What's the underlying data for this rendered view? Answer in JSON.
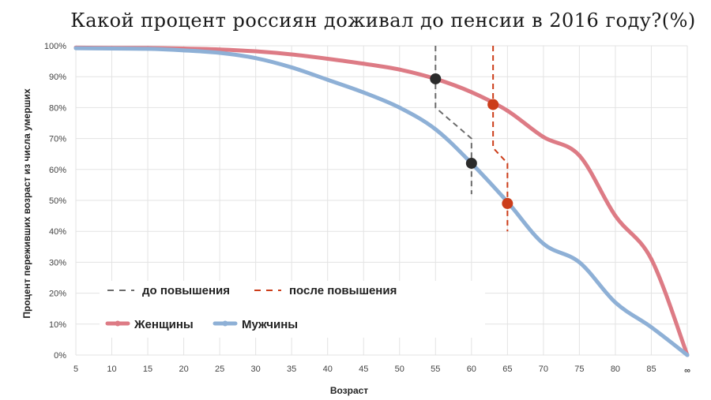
{
  "chart_data": {
    "type": "line",
    "title": "Какой процент россиян доживал до пенсии в 2016 году?(%)",
    "xlabel": "Возраст",
    "ylabel": "Процент переживших возраст из числа умерших",
    "x_ticks": [
      "5",
      "10",
      "15",
      "20",
      "25",
      "30",
      "35",
      "40",
      "45",
      "50",
      "55",
      "60",
      "65",
      "70",
      "75",
      "80",
      "85",
      "∞"
    ],
    "y_ticks": [
      "0%",
      "10%",
      "20%",
      "30%",
      "40%",
      "50%",
      "60%",
      "70%",
      "80%",
      "90%",
      "100%"
    ],
    "ylim": [
      0,
      100
    ],
    "grid": true,
    "series": [
      {
        "name": "Женщины",
        "color": "#dd7b85",
        "x": [
          5,
          10,
          15,
          20,
          25,
          30,
          35,
          40,
          45,
          50,
          55,
          60,
          65,
          70,
          75,
          80,
          85,
          90
        ],
        "values": [
          99.4,
          99.3,
          99.3,
          99.1,
          98.8,
          98.2,
          97.2,
          95.8,
          94.2,
          92.3,
          89.3,
          85,
          79,
          70.5,
          64.5,
          45,
          31,
          0
        ]
      },
      {
        "name": "Мужчины",
        "color": "#8eb0d6",
        "x": [
          5,
          10,
          15,
          20,
          25,
          30,
          35,
          40,
          45,
          50,
          55,
          60,
          65,
          70,
          75,
          80,
          85,
          90
        ],
        "values": [
          99.2,
          99.1,
          99,
          98.5,
          97.7,
          96,
          93,
          89,
          84.9,
          80,
          73,
          62,
          49.5,
          36,
          30,
          17,
          9,
          0
        ]
      }
    ],
    "markers": [
      {
        "group": "до повышения",
        "series": "Женщины",
        "x": 55,
        "y": 89.3,
        "color": "#2b2b2b"
      },
      {
        "group": "до повышения",
        "series": "Мужчины",
        "x": 60,
        "y": 62,
        "color": "#2b2b2b"
      },
      {
        "group": "после повышения",
        "series": "Женщины",
        "x": 63,
        "y": 81,
        "color": "#cc3d1a"
      },
      {
        "group": "после повышения",
        "series": "Мужчины",
        "x": 65,
        "y": 49,
        "color": "#cc3d1a"
      }
    ],
    "reference_lines": [
      {
        "label": "до повышения",
        "color": "#6b6b6b",
        "path": [
          [
            55,
            100
          ],
          [
            55,
            80
          ],
          [
            60,
            70
          ],
          [
            60,
            52
          ]
        ]
      },
      {
        "label": "после повышения",
        "color": "#cc3d1a",
        "path": [
          [
            63,
            100
          ],
          [
            63,
            67
          ],
          [
            65,
            62
          ],
          [
            65,
            40
          ]
        ]
      }
    ],
    "legend": {
      "placement": "bottom-left",
      "reference_items": [
        {
          "label": "до повышения",
          "color": "#6b6b6b"
        },
        {
          "label": "после повышения",
          "color": "#cc3d1a"
        }
      ],
      "series_items": [
        {
          "label": "Женщины",
          "color": "#dd7b85"
        },
        {
          "label": "Мужчины",
          "color": "#8eb0d6"
        }
      ]
    }
  }
}
